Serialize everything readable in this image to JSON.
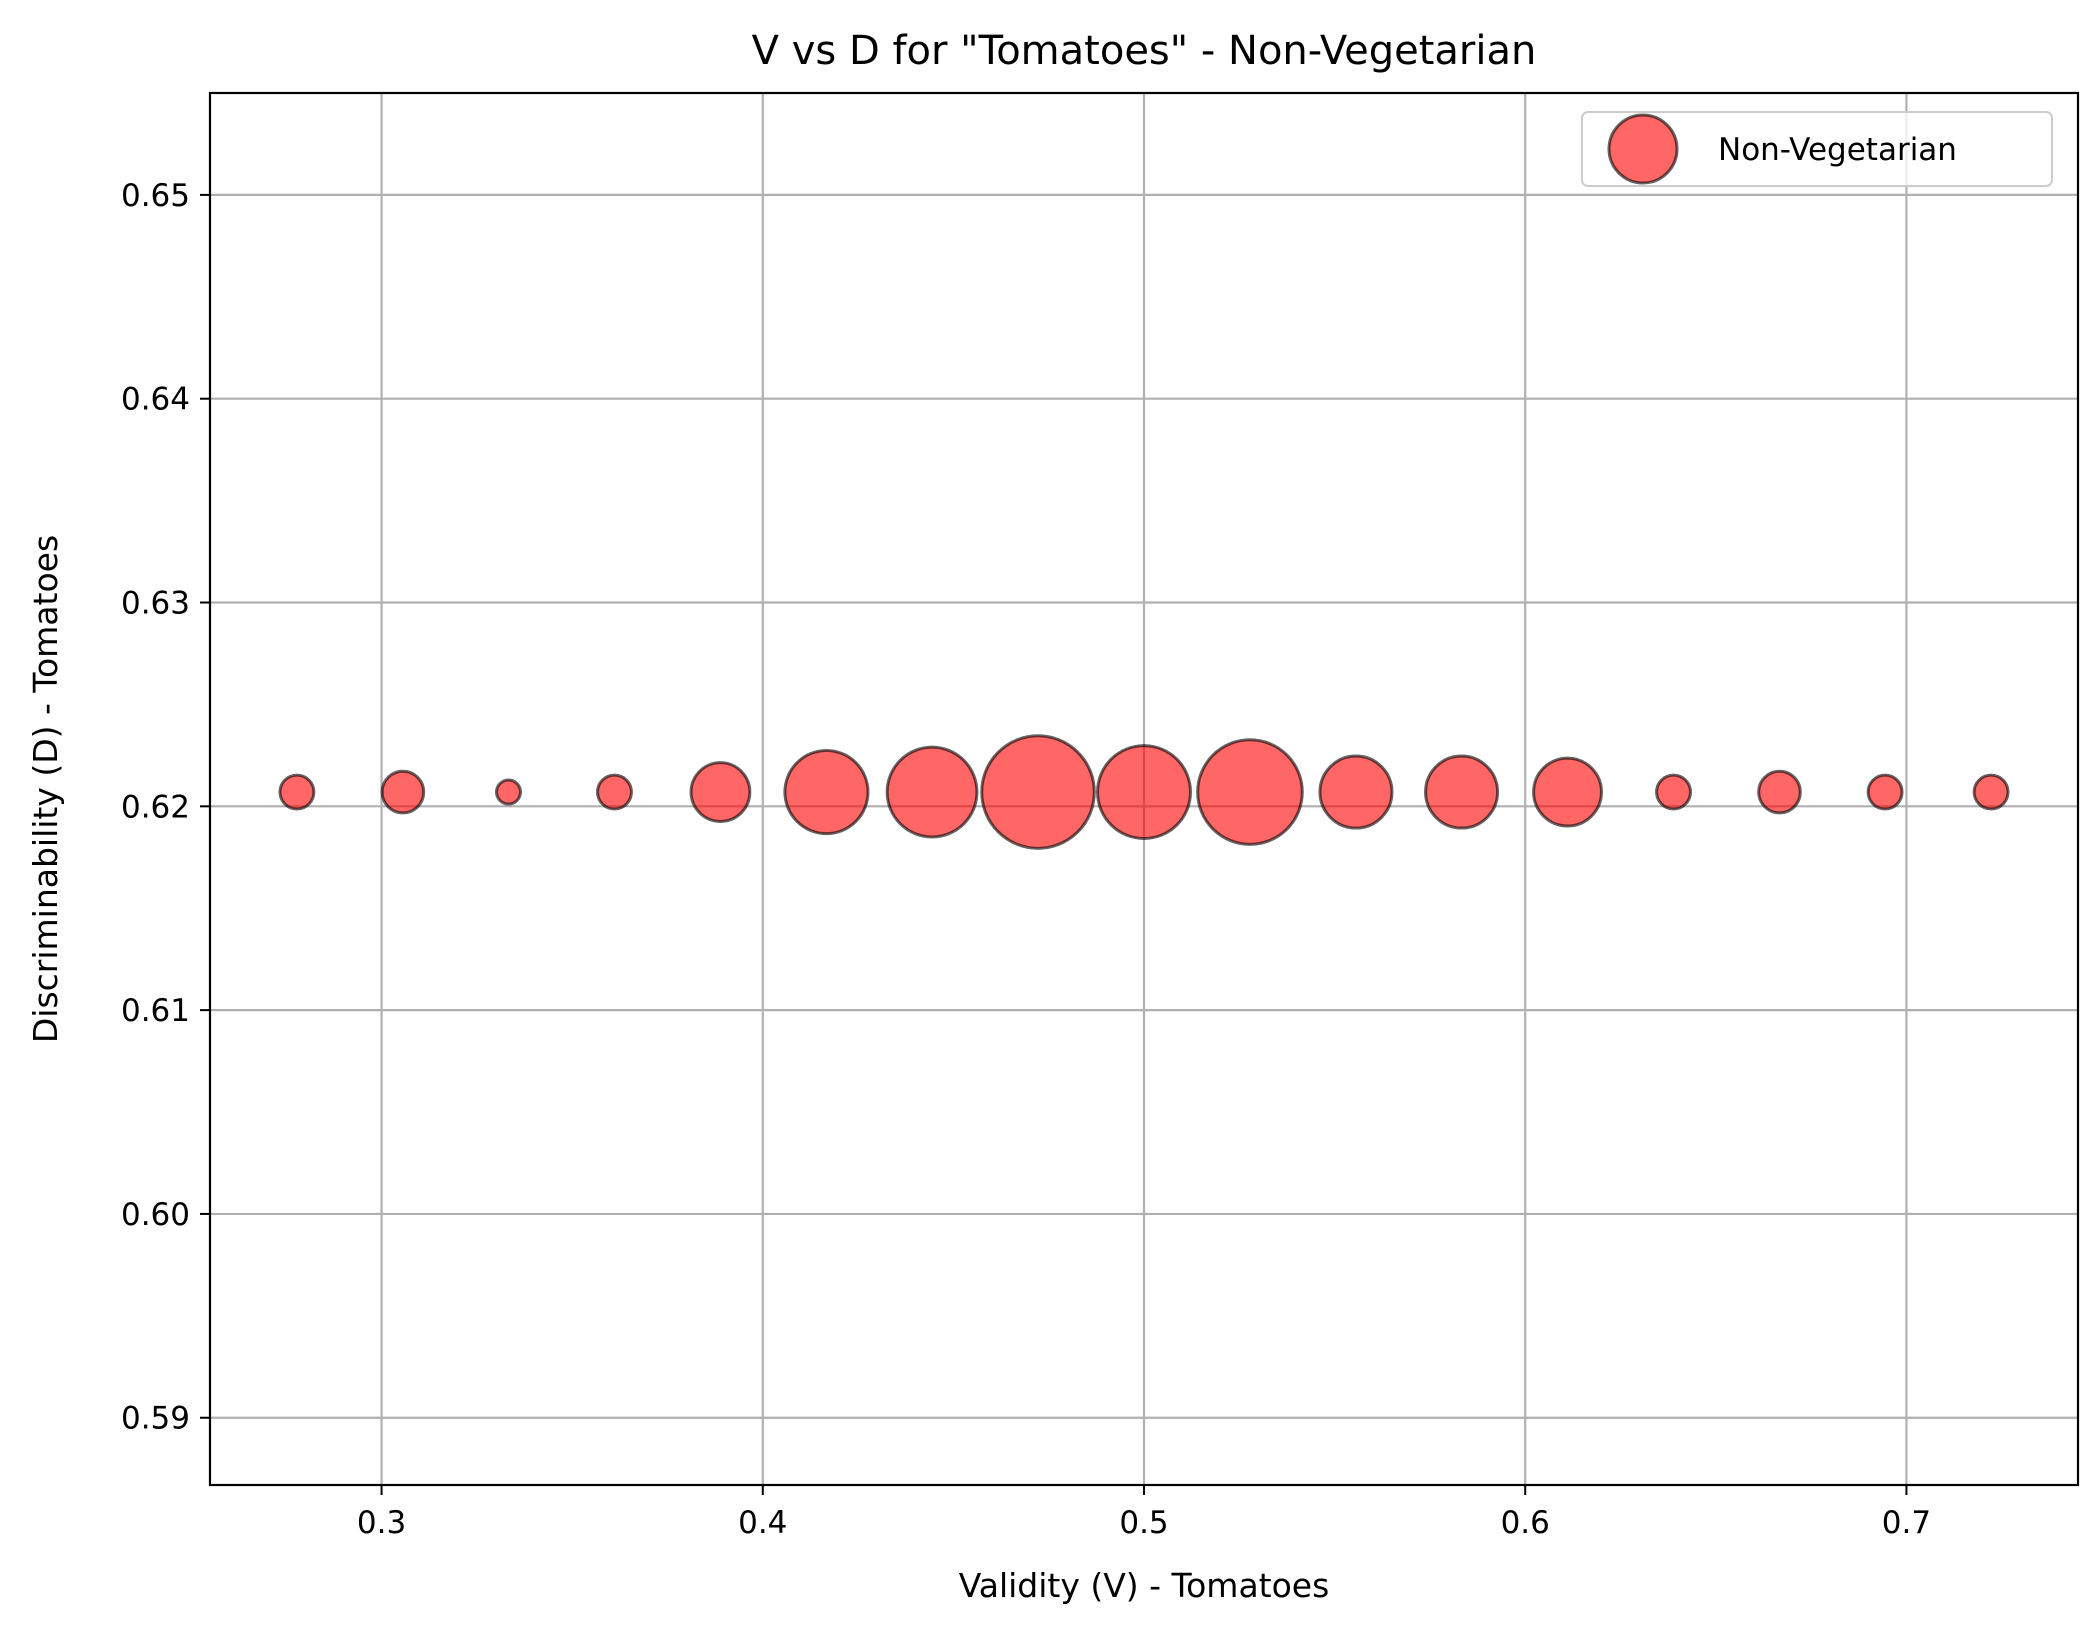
{
  "chart_data": {
    "type": "scatter",
    "title": "V vs D for \"Tomatoes\" - Non-Vegetarian",
    "xlabel": "Validity (V) - Tomatoes",
    "ylabel": "Discriminability (D) - Tomatoes",
    "xlim": [
      0.255,
      0.745
    ],
    "ylim": [
      0.5867,
      0.655
    ],
    "xticks": [
      0.3,
      0.4,
      0.5,
      0.6,
      0.7
    ],
    "xtick_labels": [
      "0.3",
      "0.4",
      "0.5",
      "0.6",
      "0.7"
    ],
    "yticks": [
      0.59,
      0.6,
      0.61,
      0.62,
      0.63,
      0.64,
      0.65
    ],
    "ytick_labels": [
      "0.59",
      "0.60",
      "0.61",
      "0.62",
      "0.63",
      "0.64",
      "0.65"
    ],
    "grid": true,
    "legend_position": "top-right",
    "marker_color": "#ff0000",
    "marker_edge_color": "#000000",
    "series": [
      {
        "name": "Non-Vegetarian",
        "x": [
          0.2778,
          0.3056,
          0.3333,
          0.3611,
          0.3889,
          0.4167,
          0.4444,
          0.4722,
          0.5,
          0.5278,
          0.5556,
          0.5833,
          0.6111,
          0.6389,
          0.6667,
          0.6944,
          0.7222
        ],
        "y": [
          0.6207,
          0.6207,
          0.6207,
          0.6207,
          0.6207,
          0.6207,
          0.6207,
          0.6207,
          0.6207,
          0.6207,
          0.6207,
          0.6207,
          0.6207,
          0.6207,
          0.6207,
          0.6207,
          0.6207
        ],
        "sizes": [
          2,
          3,
          1,
          2,
          6,
          12,
          14,
          22,
          15,
          19,
          9,
          9,
          8,
          2,
          3,
          2,
          2
        ]
      }
    ]
  }
}
